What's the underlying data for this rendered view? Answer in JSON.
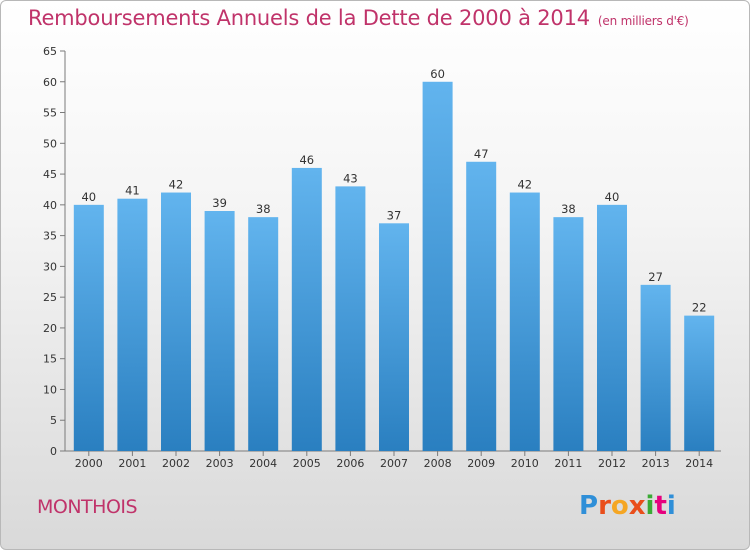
{
  "title": "Remboursements Annuels de la Dette de 2000 à 2014",
  "unit": "(en milliers d'€)",
  "commune": "MONTHOIS",
  "logo_text": "Proxiti",
  "colors": {
    "accent": "#c0336a",
    "bar_top": "#62b4ee",
    "bar_bottom": "#2a7fc0",
    "logo": [
      "#2f8fd8",
      "#e94e1b",
      "#f5a623",
      "#3aaa35",
      "#e6007e"
    ]
  },
  "chart_data": {
    "type": "bar",
    "title": "Remboursements Annuels de la Dette de 2000 à 2014",
    "subtitle": "(en milliers d'€)",
    "xlabel": "",
    "ylabel": "",
    "categories": [
      "2000",
      "2001",
      "2002",
      "2003",
      "2004",
      "2005",
      "2006",
      "2007",
      "2008",
      "2009",
      "2010",
      "2011",
      "2012",
      "2013",
      "2014"
    ],
    "values": [
      40,
      41,
      42,
      39,
      38,
      46,
      43,
      37,
      60,
      47,
      42,
      38,
      40,
      27,
      22
    ],
    "ylim": [
      0,
      65
    ],
    "yticks": [
      0,
      5,
      10,
      15,
      20,
      25,
      30,
      35,
      40,
      45,
      50,
      55,
      60,
      65
    ],
    "grid": false,
    "legend": "none"
  }
}
